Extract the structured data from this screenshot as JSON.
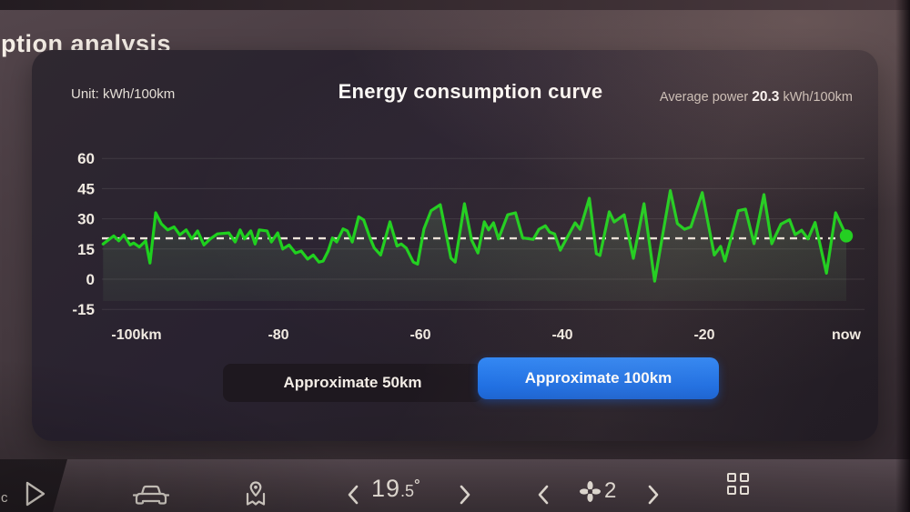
{
  "background": {
    "partial_title": "ption analysis"
  },
  "panel": {
    "unit_label": "Unit: kWh/100km",
    "title": "Energy consumption curve",
    "average": {
      "label": "Average power",
      "value": "20.3",
      "unit": "kWh/100km"
    },
    "range_buttons": [
      {
        "label": "Approximate 50km",
        "active": false
      },
      {
        "label": "Approximate 100km",
        "active": true
      }
    ]
  },
  "chart_data": {
    "type": "line",
    "title": "Energy consumption curve",
    "unit": "kWh/100km",
    "average_kwh_per_100km": 20.3,
    "ylim": [
      -15,
      60
    ],
    "y_ticks": [
      60,
      45,
      30,
      15,
      0,
      -15
    ],
    "x_ticks": [
      {
        "km": -100,
        "label": "-100km"
      },
      {
        "km": -80,
        "label": "-80"
      },
      {
        "km": -60,
        "label": "-60"
      },
      {
        "km": -40,
        "label": "-40"
      },
      {
        "km": -20,
        "label": "-20"
      },
      {
        "km": 0,
        "label": "now"
      }
    ],
    "grid": true,
    "legend": false,
    "line_color": "#1ed11e",
    "average_line_color": "#ece4da",
    "points_km_kwh": [
      [
        -104.7,
        17.5
      ],
      [
        -103.2,
        21.5
      ],
      [
        -102.5,
        19
      ],
      [
        -101.8,
        22
      ],
      [
        -100.9,
        17
      ],
      [
        -100.4,
        18
      ],
      [
        -99.6,
        16
      ],
      [
        -98.7,
        19
      ],
      [
        -98.1,
        8
      ],
      [
        -97.3,
        33
      ],
      [
        -96.5,
        27.5
      ],
      [
        -95.6,
        24.5
      ],
      [
        -94.7,
        26
      ],
      [
        -93.9,
        22
      ],
      [
        -93,
        24.5
      ],
      [
        -92.2,
        20
      ],
      [
        -91.4,
        24
      ],
      [
        -90.5,
        17
      ],
      [
        -89.6,
        20
      ],
      [
        -88.6,
        22.5
      ],
      [
        -87,
        23
      ],
      [
        -86.1,
        18.5
      ],
      [
        -85.4,
        24.5
      ],
      [
        -84.8,
        20
      ],
      [
        -83.9,
        24
      ],
      [
        -83.3,
        17.5
      ],
      [
        -82.7,
        24.5
      ],
      [
        -81.6,
        24
      ],
      [
        -81,
        18.5
      ],
      [
        -80.1,
        23
      ],
      [
        -79.4,
        15
      ],
      [
        -78.5,
        17
      ],
      [
        -77.6,
        13
      ],
      [
        -76.8,
        14
      ],
      [
        -75.9,
        10
      ],
      [
        -75.1,
        12
      ],
      [
        -74.3,
        8.5
      ],
      [
        -73.7,
        9
      ],
      [
        -73,
        14
      ],
      [
        -72.4,
        20.5
      ],
      [
        -71.8,
        18.5
      ],
      [
        -70.9,
        25
      ],
      [
        -70.3,
        24
      ],
      [
        -69.6,
        18.5
      ],
      [
        -68.7,
        31
      ],
      [
        -68,
        29.5
      ],
      [
        -67.1,
        20.5
      ],
      [
        -66.5,
        15.5
      ],
      [
        -65.6,
        12
      ],
      [
        -64.3,
        28.5
      ],
      [
        -63.3,
        16.5
      ],
      [
        -62.7,
        17.5
      ],
      [
        -62,
        15.5
      ],
      [
        -61,
        8.5
      ],
      [
        -60.4,
        7.5
      ],
      [
        -59.5,
        25
      ],
      [
        -58.5,
        34
      ],
      [
        -57.2,
        37
      ],
      [
        -56.6,
        26.5
      ],
      [
        -55.7,
        10.5
      ],
      [
        -55.1,
        8.5
      ],
      [
        -53.8,
        37.5
      ],
      [
        -52.8,
        19.5
      ],
      [
        -51.9,
        13
      ],
      [
        -51,
        28.5
      ],
      [
        -50.4,
        24.5
      ],
      [
        -49.7,
        28
      ],
      [
        -49,
        20
      ],
      [
        -47.7,
        32
      ],
      [
        -46.6,
        33
      ],
      [
        -45.6,
        20.5
      ],
      [
        -44.6,
        20
      ],
      [
        -44.1,
        19.8
      ],
      [
        -43.3,
        24.8
      ],
      [
        -42.4,
        26.5
      ],
      [
        -41.8,
        23.4
      ],
      [
        -41.1,
        22.5
      ],
      [
        -40.3,
        14.4
      ],
      [
        -38.2,
        28
      ],
      [
        -37.5,
        24.8
      ],
      [
        -36.2,
        40.2
      ],
      [
        -35.2,
        12.7
      ],
      [
        -34.7,
        11.8
      ],
      [
        -33.4,
        33.5
      ],
      [
        -32.7,
        28.4
      ],
      [
        -31.3,
        32
      ],
      [
        -30,
        10.4
      ],
      [
        -28.5,
        37.5
      ],
      [
        -27,
        -1
      ],
      [
        -24.8,
        44
      ],
      [
        -23.8,
        27.6
      ],
      [
        -22.8,
        24.8
      ],
      [
        -21.9,
        26
      ],
      [
        -20.3,
        43
      ],
      [
        -18.6,
        12
      ],
      [
        -17.7,
        16.3
      ],
      [
        -17.1,
        9
      ],
      [
        -15.2,
        34
      ],
      [
        -14.2,
        34.8
      ],
      [
        -13,
        17.6
      ],
      [
        -11.6,
        42
      ],
      [
        -10.5,
        17.6
      ],
      [
        -9.2,
        27.4
      ],
      [
        -8,
        29.6
      ],
      [
        -7.2,
        22.1
      ],
      [
        -6.3,
        24.3
      ],
      [
        -5.4,
        20
      ],
      [
        -4.4,
        28.2
      ],
      [
        -2.8,
        3
      ],
      [
        -1.5,
        33
      ],
      [
        0,
        21.5
      ]
    ]
  },
  "bottom_bar": {
    "partial_left_text": "c",
    "temperature": {
      "integer": "19",
      "fraction": ".5",
      "degree": "°"
    },
    "fan_level": "2",
    "icons": {
      "nav_play": "play-triangle-outline",
      "vehicle": "car-front-outline",
      "map": "map-with-pin",
      "temp_down": "chevron-left",
      "temp_up": "chevron-right",
      "fan_down": "chevron-left",
      "fan_up": "chevron-right",
      "apps": "grid-2x2"
    }
  }
}
